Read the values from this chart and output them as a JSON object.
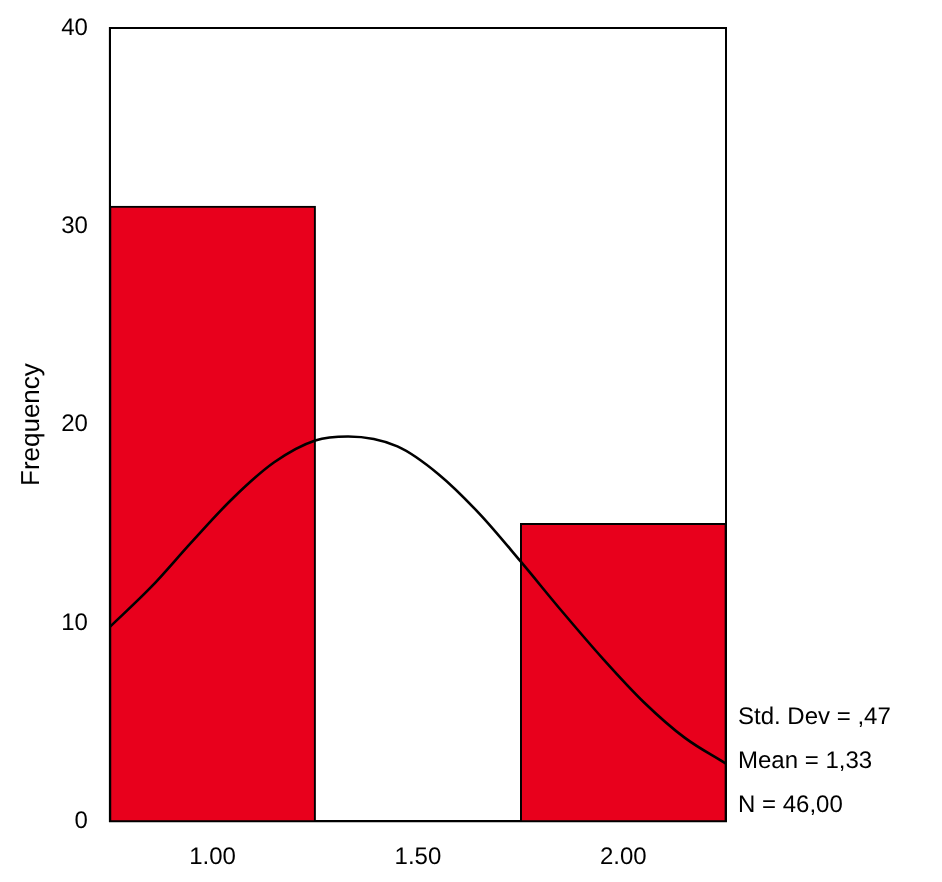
{
  "chart_data": {
    "type": "histogram",
    "ylabel": "Frequency",
    "bins": [
      0.75,
      1.25,
      1.75,
      2.25
    ],
    "values": [
      31,
      0,
      15
    ],
    "color": "#e8001c",
    "xlim": [
      0.75,
      2.25
    ],
    "xticks": [
      {
        "value": 1,
        "label": "1.00"
      },
      {
        "value": 1.5,
        "label": "1.50"
      },
      {
        "value": 2,
        "label": "2.00"
      }
    ],
    "ylim": [
      0,
      40
    ],
    "yticks": [
      0,
      10,
      20,
      30,
      40
    ],
    "grid": false,
    "legend": false,
    "series": [
      {
        "type": "line",
        "color": "#000000",
        "marker": "none",
        "x": [
          0.75,
          0.85,
          0.95,
          1.05,
          1.15,
          1.25,
          1.33,
          1.45,
          1.55,
          1.65,
          1.75,
          1.85,
          1.95,
          2.05,
          2.15,
          2.25
        ],
        "values": [
          9.8,
          11.8,
          14.1,
          16.3,
          18.1,
          19.2,
          19.4,
          18.9,
          17.5,
          15.5,
          13.1,
          10.6,
          8.2,
          6.0,
          4.2,
          2.9
        ]
      }
    ],
    "annotations": [
      "Std. Dev = ,47",
      "Mean = 1,33",
      "N = 46,00"
    ]
  }
}
